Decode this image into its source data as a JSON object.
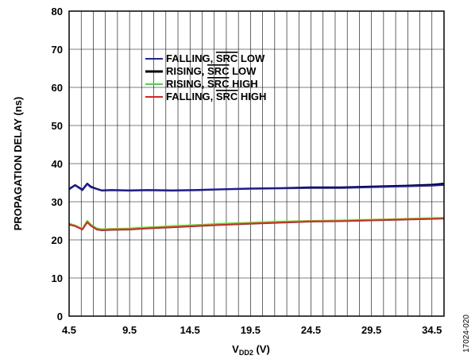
{
  "chart_data": {
    "type": "line",
    "xlabel_main": "V",
    "xlabel_sub": "DD2",
    "xlabel_unit": " (V)",
    "ylabel": "PROPAGATION DELAY (ns)",
    "xlim": [
      4.5,
      35.5
    ],
    "ylim": [
      0,
      80
    ],
    "x_ticks": [
      "4.5",
      "9.5",
      "14.5",
      "19.5",
      "24.5",
      "29.5",
      "34.5"
    ],
    "y_ticks": [
      "0",
      "10",
      "20",
      "30",
      "40",
      "50",
      "60",
      "70",
      "80"
    ],
    "grid": true,
    "legend_position": "upper-center",
    "figure_id": "17024-020",
    "series": [
      {
        "legend_prefix": "FALLING, ",
        "legend_over": "SRC",
        "legend_suffix": " LOW",
        "color": "#1f1fa8",
        "x": [
          4.5,
          5.0,
          5.6,
          6.0,
          6.3,
          6.8,
          7.2,
          8.0,
          9.5,
          11,
          13,
          15,
          17,
          19.5,
          22,
          24.5,
          27,
          29.5,
          32,
          34.5,
          35.5
        ],
        "y": [
          33.2,
          34.3,
          33.0,
          34.6,
          33.8,
          33.3,
          32.9,
          33.0,
          32.9,
          33.0,
          32.9,
          33.0,
          33.2,
          33.4,
          33.5,
          33.6,
          33.6,
          33.8,
          34.0,
          34.2,
          34.4
        ]
      },
      {
        "legend_prefix": "RISING, ",
        "legend_over": "SRC",
        "legend_suffix": " LOW",
        "color": "#000000",
        "x": [
          4.5,
          5.0,
          5.6,
          6.0,
          6.3,
          6.8,
          7.2,
          8.0,
          9.5,
          11,
          13,
          15,
          17,
          19.5,
          22,
          24.5,
          27,
          29.5,
          32,
          34.5,
          35.5
        ],
        "y": [
          33.4,
          34.4,
          33.2,
          34.8,
          34.0,
          33.4,
          33.0,
          33.1,
          33.0,
          33.1,
          33.0,
          33.1,
          33.3,
          33.5,
          33.6,
          33.8,
          33.8,
          34.0,
          34.2,
          34.5,
          34.8
        ]
      },
      {
        "legend_prefix": "RISING, ",
        "legend_over": "SRC",
        "legend_suffix": " HIGH",
        "color": "#3ddc3d",
        "x": [
          4.5,
          5.0,
          5.6,
          6.0,
          6.3,
          6.8,
          7.2,
          8.0,
          9.5,
          11,
          13,
          15,
          17,
          19.5,
          22,
          24.5,
          27,
          29.5,
          32,
          34.5,
          35.5
        ],
        "y": [
          24.3,
          23.8,
          22.9,
          25.0,
          24.0,
          23.0,
          22.8,
          22.9,
          23.0,
          23.3,
          23.6,
          23.9,
          24.2,
          24.5,
          24.8,
          25.0,
          25.1,
          25.3,
          25.5,
          25.7,
          25.8
        ]
      },
      {
        "legend_prefix": "FALLING, ",
        "legend_over": "SRC",
        "legend_suffix": " HIGH",
        "color": "#e0201c",
        "x": [
          4.5,
          5.0,
          5.6,
          6.0,
          6.3,
          6.8,
          7.2,
          8.0,
          9.5,
          11,
          13,
          15,
          17,
          19.5,
          22,
          24.5,
          27,
          29.5,
          32,
          34.5,
          35.5
        ],
        "y": [
          24.0,
          23.6,
          22.7,
          24.6,
          23.7,
          22.7,
          22.5,
          22.6,
          22.7,
          23.0,
          23.3,
          23.6,
          23.9,
          24.2,
          24.5,
          24.8,
          24.9,
          25.1,
          25.3,
          25.5,
          25.6
        ]
      }
    ]
  }
}
